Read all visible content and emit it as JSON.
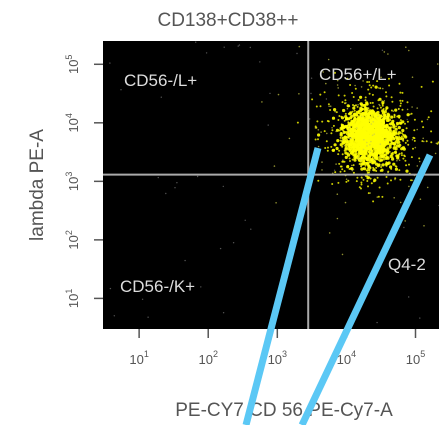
{
  "chart_data": {
    "type": "scatter",
    "title": "CD138+CD38++",
    "xlabel": "PE-CY7 CD 56 PE-Cy7-A",
    "ylabel": "lambda PE-A",
    "x_scale": "log",
    "y_scale": "log",
    "xlim": [
      3,
      250000
    ],
    "ylim": [
      3,
      250000
    ],
    "x_ticks": [
      {
        "value": 10,
        "base": "10",
        "exp": "1"
      },
      {
        "value": 100,
        "base": "10",
        "exp": "2"
      },
      {
        "value": 1000,
        "base": "10",
        "exp": "3"
      },
      {
        "value": 10000,
        "base": "10",
        "exp": "4"
      },
      {
        "value": 100000,
        "base": "10",
        "exp": "5"
      }
    ],
    "y_ticks": [
      {
        "value": 10,
        "base": "10",
        "exp": "1"
      },
      {
        "value": 100,
        "base": "10",
        "exp": "2"
      },
      {
        "value": 1000,
        "base": "10",
        "exp": "3"
      },
      {
        "value": 10000,
        "base": "10",
        "exp": "4"
      },
      {
        "value": 100000,
        "base": "10",
        "exp": "5"
      }
    ],
    "gate": {
      "x": 2800,
      "y": 1300
    },
    "quadrant_labels": [
      {
        "name": "q-upper-left",
        "text": "CD56-/L+"
      },
      {
        "name": "q-upper-right",
        "text": "CD56+/L+"
      },
      {
        "name": "q-lower-left",
        "text": "CD56-/K+"
      },
      {
        "name": "q-lower-right",
        "text": "Q4-2"
      }
    ],
    "population": {
      "x_center": 22000,
      "y_center": 6000,
      "color": "#ffff00"
    },
    "colors": {
      "plot_background": "#000000",
      "gate_lines": "#aaaaaa",
      "axis_text": "#555555",
      "quadrant_text": "#dddddd",
      "overlay_lines": "#5bc8f5"
    }
  }
}
